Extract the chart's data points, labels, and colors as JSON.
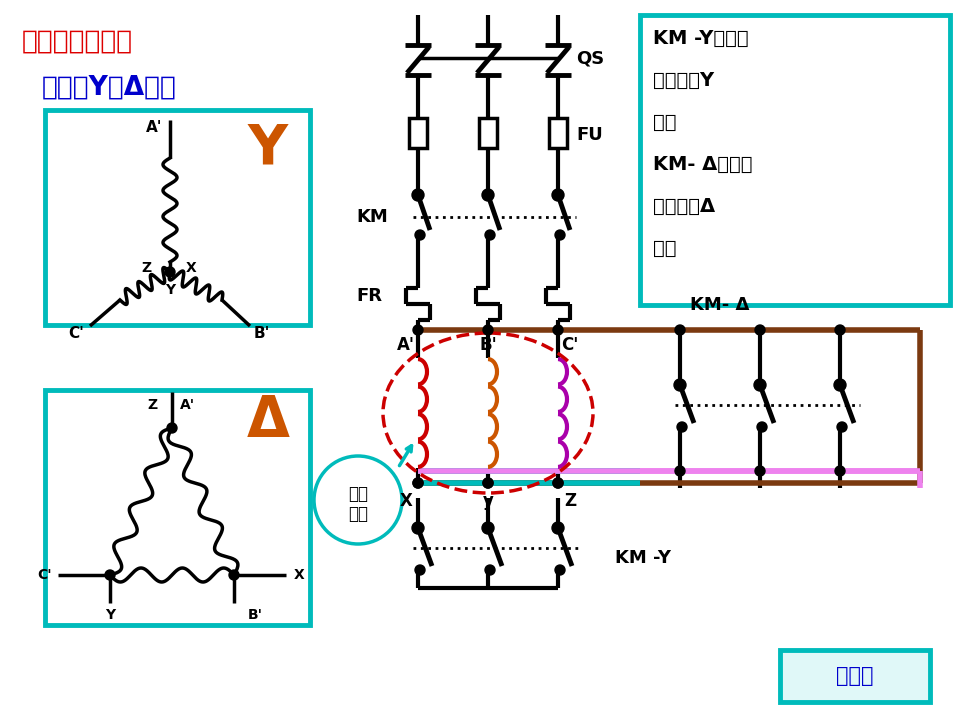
{
  "bg_color": "#ffffff",
  "title1": "定时控制例一：",
  "title2": "电机的Y－Δ起动",
  "title1_color": "#dd0000",
  "title2_color": "#0000cc",
  "box_color": "#00bbbb",
  "orange_color": "#cc5500",
  "brown": "#7B3A10",
  "pink": "#ee82ee",
  "teal": "#00bbbb",
  "red_coil": "#cc0000",
  "desc_line1": "KM -Y闭合，",
  "desc_line2": "电机接成Y",
  "desc_line3": "形；",
  "desc_line4": "KM- Δ闭合，",
  "desc_line5": "电机接成Δ",
  "desc_line6": "形。",
  "label_KM": "KM",
  "label_FR": "FR",
  "label_QS": "QS",
  "label_FU": "FU",
  "label_KMY": "KM -Y",
  "label_KMD": "KM- Δ",
  "label_motor": "电机\n绕组",
  "label_main": "主电路",
  "label_Y_orange": "Y",
  "label_delta_orange": "Δ"
}
